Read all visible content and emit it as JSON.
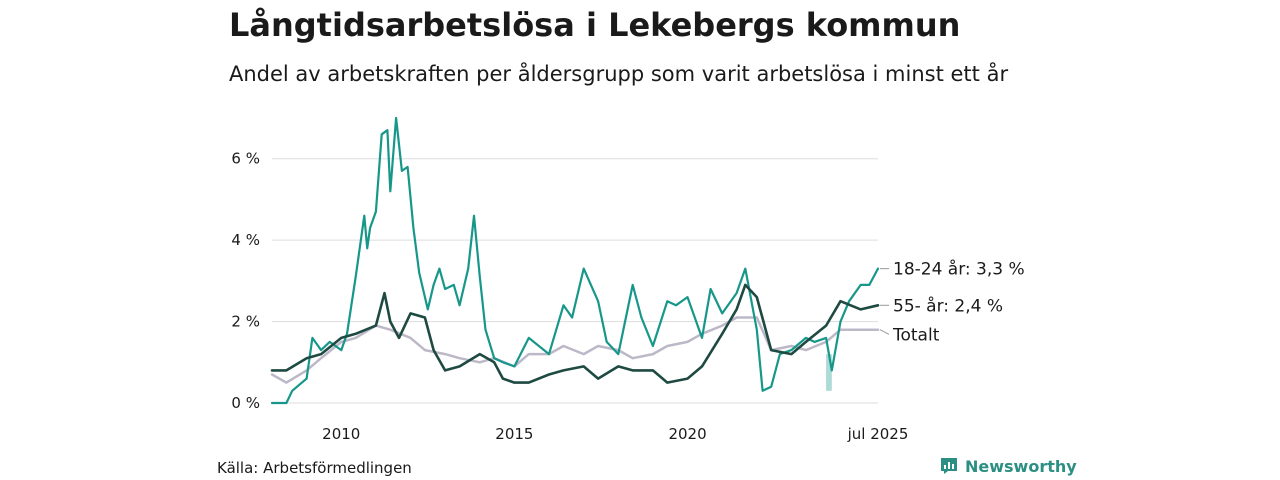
{
  "header": {
    "title": "Långtidsarbetslösa i Lekebergs kommun",
    "subtitle": "Andel av arbetskraften per åldersgrupp som varit arbetslösa i minst ett år"
  },
  "footer": {
    "source": "Källa: Arbetsförmedlingen",
    "brand": "Newsworthy"
  },
  "colors": {
    "youth": "#17978a",
    "senior": "#1e4a42",
    "total": "#bdb8c8",
    "grid": "#dddddd"
  },
  "chart_data": {
    "type": "line",
    "title": "Långtidsarbetslösa i Lekebergs kommun",
    "subtitle": "Andel av arbetskraften per åldersgrupp som varit arbetslösa i minst ett år",
    "ylim": [
      0,
      7
    ],
    "yticks": [
      0,
      2,
      4,
      6
    ],
    "ytick_labels": [
      "0 %",
      "2 %",
      "4 %",
      "6 %"
    ],
    "xlim": [
      "2008-01",
      "2025-07"
    ],
    "xticks": [
      "2010-01",
      "2015-01",
      "2020-01",
      "2025-07"
    ],
    "xtick_labels": [
      "2010",
      "2015",
      "2020",
      "jul 2025"
    ],
    "grid": true,
    "series": [
      {
        "key": "total",
        "name": "Totalt",
        "end_label": "Totalt",
        "points": [
          [
            "2008-01",
            0.7
          ],
          [
            "2008-06",
            0.5
          ],
          [
            "2009-01",
            0.8
          ],
          [
            "2009-06",
            1.1
          ],
          [
            "2010-01",
            1.5
          ],
          [
            "2010-06",
            1.6
          ],
          [
            "2011-01",
            1.9
          ],
          [
            "2011-06",
            1.8
          ],
          [
            "2012-01",
            1.6
          ],
          [
            "2012-06",
            1.3
          ],
          [
            "2013-01",
            1.2
          ],
          [
            "2013-06",
            1.1
          ],
          [
            "2014-01",
            1.0
          ],
          [
            "2014-06",
            1.1
          ],
          [
            "2015-01",
            0.9
          ],
          [
            "2015-06",
            1.2
          ],
          [
            "2016-01",
            1.2
          ],
          [
            "2016-06",
            1.4
          ],
          [
            "2017-01",
            1.2
          ],
          [
            "2017-06",
            1.4
          ],
          [
            "2018-01",
            1.3
          ],
          [
            "2018-06",
            1.1
          ],
          [
            "2019-01",
            1.2
          ],
          [
            "2019-06",
            1.4
          ],
          [
            "2020-01",
            1.5
          ],
          [
            "2020-06",
            1.7
          ],
          [
            "2021-01",
            1.9
          ],
          [
            "2021-06",
            2.1
          ],
          [
            "2022-01",
            2.1
          ],
          [
            "2022-06",
            1.3
          ],
          [
            "2023-01",
            1.4
          ],
          [
            "2023-06",
            1.3
          ],
          [
            "2024-01",
            1.5
          ],
          [
            "2024-06",
            1.8
          ],
          [
            "2025-01",
            1.8
          ],
          [
            "2025-07",
            1.8
          ]
        ]
      },
      {
        "key": "youth",
        "name": "18-24 år",
        "end_label": "18-24 år: 3,3 %",
        "points": [
          [
            "2008-01",
            0.0
          ],
          [
            "2008-06",
            0.0
          ],
          [
            "2008-08",
            0.3
          ],
          [
            "2009-01",
            0.6
          ],
          [
            "2009-03",
            1.6
          ],
          [
            "2009-06",
            1.3
          ],
          [
            "2009-09",
            1.5
          ],
          [
            "2010-01",
            1.3
          ],
          [
            "2010-03",
            1.7
          ],
          [
            "2010-06",
            3.1
          ],
          [
            "2010-09",
            4.6
          ],
          [
            "2010-10",
            3.8
          ],
          [
            "2010-11",
            4.3
          ],
          [
            "2011-01",
            4.7
          ],
          [
            "2011-03",
            6.6
          ],
          [
            "2011-05",
            6.7
          ],
          [
            "2011-06",
            5.2
          ],
          [
            "2011-08",
            7.0
          ],
          [
            "2011-10",
            5.7
          ],
          [
            "2011-12",
            5.8
          ],
          [
            "2012-02",
            4.3
          ],
          [
            "2012-04",
            3.2
          ],
          [
            "2012-07",
            2.3
          ],
          [
            "2012-09",
            2.9
          ],
          [
            "2012-11",
            3.3
          ],
          [
            "2013-01",
            2.8
          ],
          [
            "2013-04",
            2.9
          ],
          [
            "2013-06",
            2.4
          ],
          [
            "2013-09",
            3.3
          ],
          [
            "2013-11",
            4.6
          ],
          [
            "2014-01",
            3.1
          ],
          [
            "2014-03",
            1.8
          ],
          [
            "2014-06",
            1.1
          ],
          [
            "2014-09",
            1.0
          ],
          [
            "2015-01",
            0.9
          ],
          [
            "2015-06",
            1.6
          ],
          [
            "2016-01",
            1.2
          ],
          [
            "2016-06",
            2.4
          ],
          [
            "2016-09",
            2.1
          ],
          [
            "2017-01",
            3.3
          ],
          [
            "2017-06",
            2.5
          ],
          [
            "2017-09",
            1.5
          ],
          [
            "2018-01",
            1.2
          ],
          [
            "2018-06",
            2.9
          ],
          [
            "2018-09",
            2.1
          ],
          [
            "2019-01",
            1.4
          ],
          [
            "2019-06",
            2.5
          ],
          [
            "2019-09",
            2.4
          ],
          [
            "2020-01",
            2.6
          ],
          [
            "2020-06",
            1.6
          ],
          [
            "2020-09",
            2.8
          ],
          [
            "2021-01",
            2.2
          ],
          [
            "2021-06",
            2.7
          ],
          [
            "2021-09",
            3.3
          ],
          [
            "2022-01",
            1.8
          ],
          [
            "2022-03",
            0.3
          ],
          [
            "2022-06",
            0.4
          ],
          [
            "2022-09",
            1.2
          ],
          [
            "2023-01",
            1.3
          ],
          [
            "2023-06",
            1.6
          ],
          [
            "2023-09",
            1.5
          ],
          [
            "2024-01",
            1.6
          ],
          [
            "2024-03",
            0.8
          ],
          [
            "2024-06",
            2.0
          ],
          [
            "2024-09",
            2.5
          ],
          [
            "2025-01",
            2.9
          ],
          [
            "2025-04",
            2.9
          ],
          [
            "2025-07",
            3.3
          ]
        ]
      },
      {
        "key": "senior",
        "name": "55- år",
        "end_label": "55- år: 2,4 %",
        "points": [
          [
            "2008-01",
            0.8
          ],
          [
            "2008-06",
            0.8
          ],
          [
            "2009-01",
            1.1
          ],
          [
            "2009-06",
            1.2
          ],
          [
            "2010-01",
            1.6
          ],
          [
            "2010-06",
            1.7
          ],
          [
            "2011-01",
            1.9
          ],
          [
            "2011-04",
            2.7
          ],
          [
            "2011-06",
            2.0
          ],
          [
            "2011-09",
            1.6
          ],
          [
            "2012-01",
            2.2
          ],
          [
            "2012-06",
            2.1
          ],
          [
            "2012-09",
            1.3
          ],
          [
            "2013-01",
            0.8
          ],
          [
            "2013-06",
            0.9
          ],
          [
            "2014-01",
            1.2
          ],
          [
            "2014-06",
            1.0
          ],
          [
            "2014-09",
            0.6
          ],
          [
            "2015-01",
            0.5
          ],
          [
            "2015-06",
            0.5
          ],
          [
            "2016-01",
            0.7
          ],
          [
            "2016-06",
            0.8
          ],
          [
            "2017-01",
            0.9
          ],
          [
            "2017-06",
            0.6
          ],
          [
            "2018-01",
            0.9
          ],
          [
            "2018-06",
            0.8
          ],
          [
            "2019-01",
            0.8
          ],
          [
            "2019-06",
            0.5
          ],
          [
            "2020-01",
            0.6
          ],
          [
            "2020-06",
            0.9
          ],
          [
            "2021-01",
            1.7
          ],
          [
            "2021-06",
            2.3
          ],
          [
            "2021-09",
            2.9
          ],
          [
            "2022-01",
            2.6
          ],
          [
            "2022-06",
            1.3
          ],
          [
            "2023-01",
            1.2
          ],
          [
            "2023-06",
            1.5
          ],
          [
            "2024-01",
            1.9
          ],
          [
            "2024-06",
            2.5
          ],
          [
            "2025-01",
            2.3
          ],
          [
            "2025-07",
            2.4
          ]
        ]
      }
    ],
    "uncertainty_band": {
      "series": "youth",
      "range": [
        "2024-01",
        "2024-03"
      ],
      "low": 0.3,
      "high": 1.2
    }
  }
}
